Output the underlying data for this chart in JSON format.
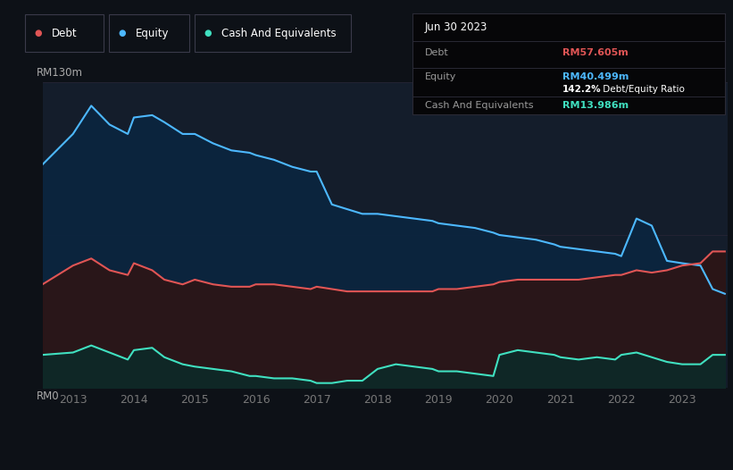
{
  "bg_color": "#0d1117",
  "plot_bg_color": "#141d2b",
  "x_min": 2012.5,
  "x_max": 2023.75,
  "y_min": 0,
  "y_max": 130,
  "y_label_top": "RM130m",
  "y_label_bottom": "RM0",
  "x_ticks": [
    2013,
    2014,
    2015,
    2016,
    2017,
    2018,
    2019,
    2020,
    2021,
    2022,
    2023
  ],
  "debt_color": "#e05555",
  "equity_color": "#4db8ff",
  "cash_color": "#40e0c0",
  "equity_fill_color": "#0a2540",
  "debt_fill_color": "#2d1515",
  "cash_fill_color": "#0d2a28",
  "tooltip_date": "Jun 30 2023",
  "tooltip_debt_label": "Debt",
  "tooltip_debt_value": "RM57.605m",
  "tooltip_equity_label": "Equity",
  "tooltip_equity_value": "RM40.499m",
  "tooltip_ratio_bold": "142.2%",
  "tooltip_ratio_rest": " Debt/Equity Ratio",
  "tooltip_cash_label": "Cash And Equivalents",
  "tooltip_cash_value": "RM13.986m",
  "legend_items": [
    "Debt",
    "Equity",
    "Cash And Equivalents"
  ],
  "legend_colors": [
    "#e05555",
    "#4db8ff",
    "#40e0c0"
  ],
  "equity_x": [
    2012.5,
    2013.0,
    2013.3,
    2013.6,
    2013.9,
    2014.0,
    2014.3,
    2014.5,
    2014.8,
    2015.0,
    2015.3,
    2015.6,
    2015.9,
    2016.0,
    2016.3,
    2016.6,
    2016.9,
    2017.0,
    2017.25,
    2017.5,
    2017.75,
    2018.0,
    2018.3,
    2018.6,
    2018.9,
    2019.0,
    2019.3,
    2019.6,
    2019.9,
    2020.0,
    2020.3,
    2020.6,
    2020.9,
    2021.0,
    2021.3,
    2021.6,
    2021.9,
    2022.0,
    2022.25,
    2022.5,
    2022.75,
    2023.0,
    2023.3,
    2023.5,
    2023.7
  ],
  "equity_y": [
    95,
    108,
    120,
    112,
    108,
    115,
    116,
    113,
    108,
    108,
    104,
    101,
    100,
    99,
    97,
    94,
    92,
    92,
    78,
    76,
    74,
    74,
    73,
    72,
    71,
    70,
    69,
    68,
    66,
    65,
    64,
    63,
    61,
    60,
    59,
    58,
    57,
    56,
    72,
    69,
    54,
    53,
    52,
    42,
    40
  ],
  "debt_x": [
    2012.5,
    2013.0,
    2013.3,
    2013.6,
    2013.9,
    2014.0,
    2014.3,
    2014.5,
    2014.8,
    2015.0,
    2015.3,
    2015.6,
    2015.9,
    2016.0,
    2016.3,
    2016.6,
    2016.9,
    2017.0,
    2017.25,
    2017.5,
    2017.75,
    2018.0,
    2018.3,
    2018.6,
    2018.9,
    2019.0,
    2019.3,
    2019.6,
    2019.9,
    2020.0,
    2020.3,
    2020.6,
    2020.9,
    2021.0,
    2021.3,
    2021.6,
    2021.9,
    2022.0,
    2022.25,
    2022.5,
    2022.75,
    2023.0,
    2023.3,
    2023.5,
    2023.7
  ],
  "debt_y": [
    44,
    52,
    55,
    50,
    48,
    53,
    50,
    46,
    44,
    46,
    44,
    43,
    43,
    44,
    44,
    43,
    42,
    43,
    42,
    41,
    41,
    41,
    41,
    41,
    41,
    42,
    42,
    43,
    44,
    45,
    46,
    46,
    46,
    46,
    46,
    47,
    48,
    48,
    50,
    49,
    50,
    52,
    53,
    58,
    58
  ],
  "cash_x": [
    2012.5,
    2013.0,
    2013.3,
    2013.6,
    2013.9,
    2014.0,
    2014.3,
    2014.5,
    2014.8,
    2015.0,
    2015.3,
    2015.6,
    2015.9,
    2016.0,
    2016.3,
    2016.6,
    2016.9,
    2017.0,
    2017.25,
    2017.5,
    2017.75,
    2018.0,
    2018.3,
    2018.6,
    2018.9,
    2019.0,
    2019.3,
    2019.6,
    2019.9,
    2020.0,
    2020.3,
    2020.6,
    2020.9,
    2021.0,
    2021.3,
    2021.6,
    2021.9,
    2022.0,
    2022.25,
    2022.5,
    2022.75,
    2023.0,
    2023.3,
    2023.5,
    2023.7
  ],
  "cash_y": [
    14,
    15,
    18,
    15,
    12,
    16,
    17,
    13,
    10,
    9,
    8,
    7,
    5,
    5,
    4,
    4,
    3,
    2,
    2,
    3,
    3,
    8,
    10,
    9,
    8,
    7,
    7,
    6,
    5,
    14,
    16,
    15,
    14,
    13,
    12,
    13,
    12,
    14,
    15,
    13,
    11,
    10,
    10,
    14,
    14
  ]
}
